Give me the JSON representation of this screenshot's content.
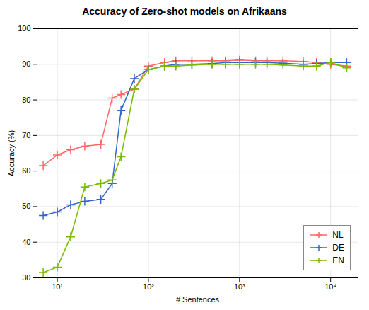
{
  "chart_data": {
    "type": "line",
    "title": "Accuracy of Zero-shot models on Afrikaans",
    "xlabel": "# Sentences",
    "ylabel": "Accuracy (%)",
    "log": "x",
    "xlim": [
      6,
      20000
    ],
    "ylim": [
      30,
      100
    ],
    "xticks": [
      {
        "value": 10,
        "label": "10¹"
      },
      {
        "value": 100,
        "label": "10²"
      },
      {
        "value": 1000,
        "label": "10³"
      },
      {
        "value": 10000,
        "label": "10⁴"
      }
    ],
    "yticks": [
      30,
      40,
      50,
      60,
      70,
      80,
      90,
      100
    ],
    "x": [
      7,
      10,
      14,
      20,
      30,
      40,
      50,
      70,
      100,
      150,
      200,
      300,
      500,
      700,
      1000,
      1500,
      2000,
      3000,
      5000,
      7000,
      10000,
      15000
    ],
    "series": [
      {
        "name": "NL",
        "color": "#ff6666",
        "marker": "+",
        "values": [
          61.5,
          64.5,
          66.0,
          67.0,
          67.5,
          80.5,
          81.5,
          83.0,
          89.5,
          90.5,
          91.0,
          91.0,
          91.0,
          91.0,
          91.2,
          91.0,
          91.0,
          91.0,
          90.8,
          90.5,
          90.0,
          89.5
        ]
      },
      {
        "name": "DE",
        "color": "#3366cc",
        "marker": "+",
        "values": [
          47.5,
          48.5,
          50.5,
          51.5,
          52.0,
          56.5,
          77.0,
          86.0,
          88.5,
          89.5,
          90.0,
          90.0,
          90.2,
          90.5,
          90.5,
          90.5,
          90.5,
          90.3,
          90.0,
          90.2,
          90.5,
          90.5
        ]
      },
      {
        "name": "EN",
        "color": "#77bb00",
        "marker": "+",
        "values": [
          31.5,
          33.0,
          41.5,
          55.5,
          56.5,
          57.5,
          64.0,
          83.0,
          88.5,
          89.5,
          89.5,
          89.8,
          90.0,
          90.0,
          90.0,
          90.0,
          90.0,
          89.8,
          89.5,
          89.5,
          90.5,
          89.0
        ]
      }
    ],
    "grid": true,
    "legend": "lower right"
  }
}
